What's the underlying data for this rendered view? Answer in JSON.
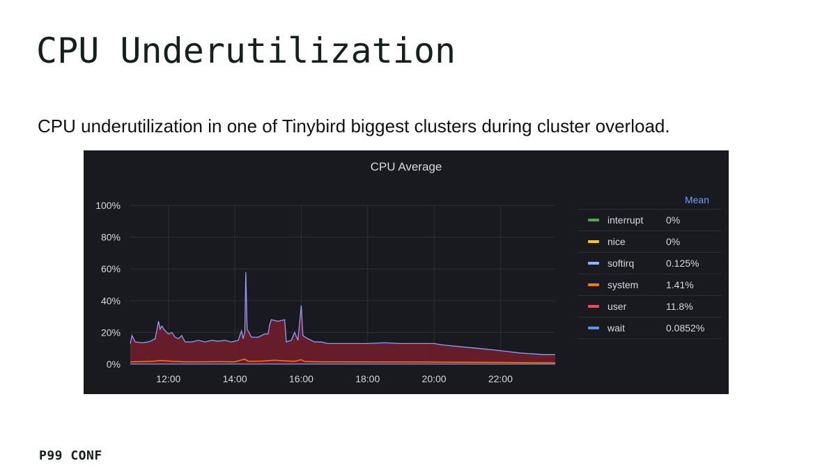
{
  "slide": {
    "title": "CPU Underutilization",
    "subtitle": "CPU underutilization in one of Tinybird biggest clusters during cluster overload.",
    "footer": "P99 CONF"
  },
  "chart_data": {
    "type": "area",
    "title": "CPU Average",
    "xlabel": "",
    "ylabel": "",
    "x_unit": "hours",
    "xlim": [
      10.85,
      23.65
    ],
    "ylim": [
      0,
      100
    ],
    "x_ticks": [
      {
        "value": 12,
        "label": "12:00"
      },
      {
        "value": 14,
        "label": "14:00"
      },
      {
        "value": 16,
        "label": "16:00"
      },
      {
        "value": 18,
        "label": "18:00"
      },
      {
        "value": 20,
        "label": "20:00"
      },
      {
        "value": 22,
        "label": "22:00"
      }
    ],
    "y_ticks": [
      {
        "value": 0,
        "label": "0%"
      },
      {
        "value": 20,
        "label": "20%"
      },
      {
        "value": 40,
        "label": "40%"
      },
      {
        "value": 60,
        "label": "60%"
      },
      {
        "value": 80,
        "label": "80%"
      },
      {
        "value": 100,
        "label": "100%"
      }
    ],
    "grid": true,
    "legend_position": "right",
    "legend_header": "Mean",
    "stacked": true,
    "series": [
      {
        "name": "interrupt",
        "mean": "0%",
        "color": "#56a64b",
        "values": [
          [
            10.85,
            0
          ],
          [
            23.65,
            0
          ]
        ]
      },
      {
        "name": "nice",
        "mean": "0%",
        "color": "#f2cc0c",
        "values": [
          [
            10.85,
            0
          ],
          [
            23.65,
            0
          ]
        ]
      },
      {
        "name": "softirq",
        "mean": "0.125%",
        "color": "#8ab8ff",
        "values": [
          [
            10.85,
            0.1
          ],
          [
            23.65,
            0.1
          ]
        ]
      },
      {
        "name": "system",
        "mean": "1.41%",
        "color": "#ff780a",
        "values": [
          [
            10.85,
            1.5
          ],
          [
            11.2,
            1.6
          ],
          [
            11.5,
            1.8
          ],
          [
            11.8,
            2.3
          ],
          [
            12.1,
            1.8
          ],
          [
            12.5,
            1.5
          ],
          [
            13.0,
            1.5
          ],
          [
            13.5,
            1.6
          ],
          [
            14.0,
            1.5
          ],
          [
            14.3,
            3.2
          ],
          [
            14.4,
            1.8
          ],
          [
            14.8,
            1.9
          ],
          [
            15.2,
            2.5
          ],
          [
            15.5,
            2.1
          ],
          [
            15.8,
            1.8
          ],
          [
            16.0,
            2.8
          ],
          [
            16.1,
            1.7
          ],
          [
            16.5,
            1.5
          ],
          [
            18.0,
            1.4
          ],
          [
            20.0,
            1.3
          ],
          [
            22.0,
            1.1
          ],
          [
            23.65,
            0.8
          ]
        ]
      },
      {
        "name": "user",
        "mean": "11.8%",
        "color": "#f2495c",
        "values": [
          [
            10.85,
            10
          ],
          [
            11.0,
            11
          ],
          [
            11.4,
            11.5
          ],
          [
            11.7,
            21
          ],
          [
            11.8,
            18
          ],
          [
            12.0,
            16
          ],
          [
            12.2,
            14
          ],
          [
            12.5,
            11
          ],
          [
            13.0,
            10.5
          ],
          [
            13.5,
            11
          ],
          [
            14.0,
            11
          ],
          [
            14.1,
            12
          ],
          [
            14.2,
            18
          ],
          [
            14.3,
            17
          ],
          [
            14.32,
            55
          ],
          [
            14.36,
            20
          ],
          [
            14.5,
            14
          ],
          [
            14.8,
            15
          ],
          [
            15.0,
            15
          ],
          [
            15.1,
            24
          ],
          [
            15.3,
            25
          ],
          [
            15.5,
            25
          ],
          [
            15.6,
            11
          ],
          [
            15.8,
            12
          ],
          [
            16.0,
            33
          ],
          [
            16.05,
            15
          ],
          [
            16.2,
            12
          ],
          [
            16.5,
            10
          ],
          [
            17.0,
            10
          ],
          [
            18.0,
            10
          ],
          [
            19.0,
            10
          ],
          [
            20.0,
            10
          ],
          [
            20.5,
            9
          ],
          [
            21.0,
            8
          ],
          [
            21.5,
            7
          ],
          [
            22.0,
            6
          ],
          [
            22.5,
            4.5
          ],
          [
            23.0,
            4
          ],
          [
            23.65,
            4.3
          ]
        ]
      },
      {
        "name": "wait",
        "mean": "0.0852%",
        "color": "#5794f2",
        "values": [
          [
            10.85,
            0.1
          ],
          [
            23.65,
            0.1
          ]
        ]
      }
    ],
    "top_line": {
      "color": "#8f9dff",
      "values": [
        [
          10.85,
          13
        ],
        [
          10.9,
          18
        ],
        [
          11.0,
          14
        ],
        [
          11.2,
          13.5
        ],
        [
          11.4,
          14
        ],
        [
          11.6,
          16
        ],
        [
          11.7,
          27
        ],
        [
          11.75,
          22
        ],
        [
          11.8,
          24
        ],
        [
          11.9,
          21
        ],
        [
          12.0,
          19
        ],
        [
          12.1,
          20
        ],
        [
          12.2,
          17
        ],
        [
          12.3,
          16
        ],
        [
          12.4,
          18
        ],
        [
          12.5,
          14
        ],
        [
          12.7,
          14
        ],
        [
          12.9,
          15
        ],
        [
          13.1,
          14
        ],
        [
          13.3,
          15
        ],
        [
          13.5,
          14.5
        ],
        [
          13.7,
          15
        ],
        [
          13.9,
          14
        ],
        [
          14.1,
          15
        ],
        [
          14.2,
          21
        ],
        [
          14.25,
          16
        ],
        [
          14.3,
          20
        ],
        [
          14.33,
          58
        ],
        [
          14.37,
          22
        ],
        [
          14.5,
          17
        ],
        [
          14.7,
          17
        ],
        [
          14.9,
          19
        ],
        [
          15.0,
          19
        ],
        [
          15.05,
          25
        ],
        [
          15.1,
          28
        ],
        [
          15.3,
          27
        ],
        [
          15.5,
          28
        ],
        [
          15.55,
          14
        ],
        [
          15.7,
          15
        ],
        [
          15.8,
          20
        ],
        [
          15.9,
          15
        ],
        [
          16.0,
          37
        ],
        [
          16.05,
          18
        ],
        [
          16.2,
          16
        ],
        [
          16.4,
          14
        ],
        [
          16.6,
          14
        ],
        [
          16.8,
          13
        ],
        [
          17.0,
          13
        ],
        [
          17.5,
          13
        ],
        [
          18.0,
          13
        ],
        [
          18.5,
          13.5
        ],
        [
          19.0,
          13
        ],
        [
          19.5,
          13
        ],
        [
          20.0,
          13
        ],
        [
          20.3,
          12
        ],
        [
          20.8,
          11
        ],
        [
          21.3,
          10
        ],
        [
          21.8,
          9
        ],
        [
          22.2,
          8
        ],
        [
          22.6,
          7
        ],
        [
          23.0,
          6.5
        ],
        [
          23.3,
          6
        ],
        [
          23.65,
          6
        ]
      ]
    }
  }
}
